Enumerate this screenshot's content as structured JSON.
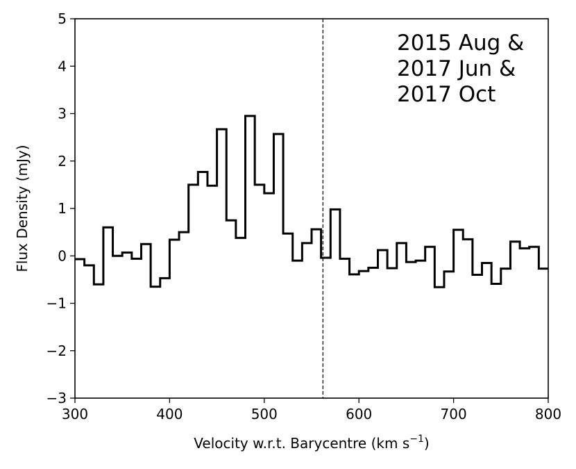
{
  "chart_data": {
    "type": "line",
    "step": true,
    "xlabel": "Velocity w.r.t. Barycentre (km s",
    "xlabel_unit_exponent": "−1",
    "xlabel_close": ")",
    "ylabel": "Flux Density (mJy)",
    "xlim": [
      300,
      800
    ],
    "ylim": [
      -3,
      5
    ],
    "xticks": [
      300,
      400,
      500,
      600,
      700,
      800
    ],
    "yticks": [
      -3,
      -2,
      -1,
      0,
      1,
      2,
      3,
      4,
      5
    ],
    "xtick_labels": [
      "300",
      "400",
      "500",
      "600",
      "700",
      "800"
    ],
    "ytick_labels": [
      "−3",
      "−2",
      "−1",
      "0",
      "1",
      "2",
      "3",
      "4",
      "5"
    ],
    "annotation_lines": [
      "2015 Aug &",
      "2017 Jun &",
      "2017 Oct"
    ],
    "vline_x": 562,
    "bin_width": 10,
    "line_color": "#000000",
    "bin_edges": [
      300,
      310,
      320,
      330,
      340,
      350,
      360,
      370,
      380,
      390,
      400,
      410,
      420,
      430,
      440,
      450,
      460,
      470,
      480,
      490,
      500,
      510,
      520,
      530,
      540,
      550,
      560,
      570,
      580,
      590,
      600,
      610,
      620,
      630,
      640,
      650,
      660,
      670,
      680,
      690,
      700,
      710,
      720,
      730,
      740,
      750,
      760,
      770,
      780,
      790,
      800
    ],
    "values": [
      -0.07,
      -0.2,
      -0.6,
      0.6,
      0.0,
      0.07,
      -0.06,
      0.25,
      -0.65,
      -0.47,
      0.34,
      0.5,
      1.5,
      1.77,
      1.48,
      2.67,
      0.75,
      0.38,
      2.95,
      1.5,
      1.32,
      2.57,
      0.47,
      -0.1,
      0.27,
      0.56,
      -0.04,
      0.98,
      -0.06,
      -0.39,
      -0.32,
      -0.25,
      0.12,
      -0.26,
      0.27,
      -0.13,
      -0.1,
      0.19,
      -0.66,
      -0.33,
      0.55,
      0.35,
      -0.4,
      -0.15,
      -0.59,
      -0.27,
      0.3,
      0.16,
      0.19,
      -0.27
    ]
  }
}
